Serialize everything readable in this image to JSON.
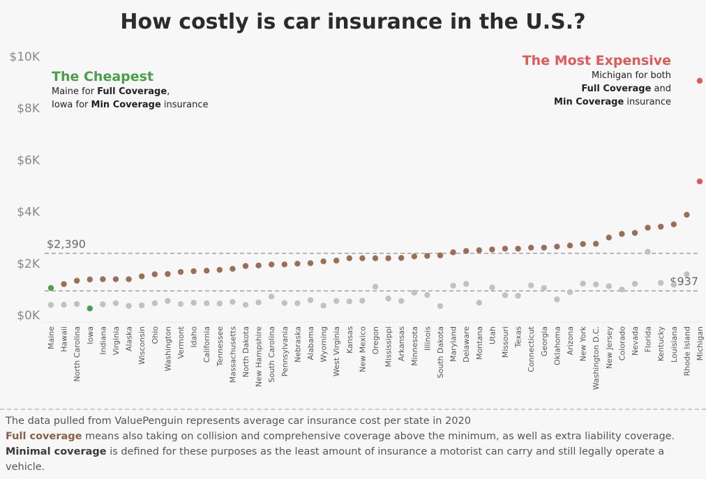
{
  "title": "How costly is car insurance in the U.S.?",
  "colors": {
    "full": "#9b6e55",
    "min": "#c4c0bd",
    "cheapest": "#4aa04a",
    "expensive": "#e05a5a",
    "reference_line": "#a0a0a0"
  },
  "annotations": {
    "cheapest": {
      "heading": "The Cheapest",
      "line1_state": "Maine",
      "line1_for": " for ",
      "line1_bold": "Full Coverage",
      "line1_end": ",",
      "line2_state": "Iowa",
      "line2_for": " for ",
      "line2_bold": "Min Coverage",
      "line2_end": " insurance"
    },
    "expensive": {
      "heading": "The Most Expensive",
      "line1_state": "Michigan",
      "line1_end": " for both",
      "line2_bold": "Full Coverage",
      "line2_end": " and",
      "line3_bold": "Min Coverage",
      "line3_end": " insurance"
    }
  },
  "footer": {
    "line1": "The data pulled from ValuePenguin represents average car insurance cost per state in 2020",
    "line2_bold": "Full coverage",
    "line2_rest": " means also taking on collision and comprehensive coverage above the minimum, as well as extra liability coverage.",
    "line3_bold": "Minimal coverage",
    "line3_rest": " is defined for these purposes as the least amount of insurance a motorist can carry and still legally operate a vehicle."
  },
  "chart_data": {
    "type": "scatter",
    "title": "How costly is car insurance in the U.S.?",
    "ylim": [
      -300,
      10200
    ],
    "yticks": [
      {
        "value": 0,
        "label": "$0K"
      },
      {
        "value": 2000,
        "label": "$2K"
      },
      {
        "value": 4000,
        "label": "$4K"
      },
      {
        "value": 6000,
        "label": "$6K"
      },
      {
        "value": 8000,
        "label": "$8K"
      },
      {
        "value": 10000,
        "label": "$10K"
      }
    ],
    "reference_lines": [
      {
        "value": 2390,
        "label": "$2,390",
        "label_side": "left"
      },
      {
        "value": 937,
        "label": "$937",
        "label_side": "right"
      }
    ],
    "grid": false,
    "categories": [
      "Maine",
      "Hawaii",
      "North Carolina",
      "Iowa",
      "Indiana",
      "Virginia",
      "Alaska",
      "Wisconsin",
      "Ohio",
      "Washington",
      "Vermont",
      "Idaho",
      "California",
      "Tennessee",
      "Massachusetts",
      "North Dakota",
      "New Hampshire",
      "South Carolina",
      "Pennsylvania",
      "Nebraska",
      "Alabama",
      "Wyoming",
      "West Virginia",
      "Kansas",
      "New Mexico",
      "Oregon",
      "Mississippi",
      "Arkansas",
      "Minnesota",
      "Illinois",
      "South Dakota",
      "Maryland",
      "Delaware",
      "Montana",
      "Utah",
      "Missouri",
      "Texas",
      "Connecticut",
      "Georgia",
      "Oklahoma",
      "Arizona",
      "New York",
      "Washington D.C.",
      "New Jersey",
      "Colorado",
      "Nevada",
      "Florida",
      "Kentucky",
      "Louisiana",
      "Rhode Island",
      "Michigan"
    ],
    "series": [
      {
        "key": "full",
        "values": [
          1050,
          1200,
          1330,
          1380,
          1390,
          1390,
          1390,
          1500,
          1580,
          1590,
          1670,
          1700,
          1720,
          1750,
          1790,
          1900,
          1920,
          1960,
          1960,
          1990,
          2010,
          2080,
          2110,
          2200,
          2200,
          2200,
          2200,
          2210,
          2270,
          2290,
          2310,
          2430,
          2480,
          2510,
          2540,
          2570,
          2570,
          2610,
          2610,
          2650,
          2690,
          2750,
          2760,
          3000,
          3140,
          3180,
          3380,
          3420,
          3510,
          3880,
          9060
        ]
      },
      {
        "key": "min",
        "values": [
          400,
          400,
          430,
          260,
          420,
          460,
          360,
          380,
          460,
          550,
          430,
          480,
          460,
          450,
          510,
          400,
          490,
          720,
          470,
          460,
          580,
          370,
          550,
          530,
          560,
          1100,
          640,
          550,
          870,
          780,
          350,
          1140,
          1210,
          480,
          1070,
          770,
          750,
          1150,
          1050,
          610,
          890,
          1220,
          1190,
          1120,
          990,
          1210,
          2450,
          1250,
          1180,
          1580,
          5170
        ]
      }
    ]
  }
}
